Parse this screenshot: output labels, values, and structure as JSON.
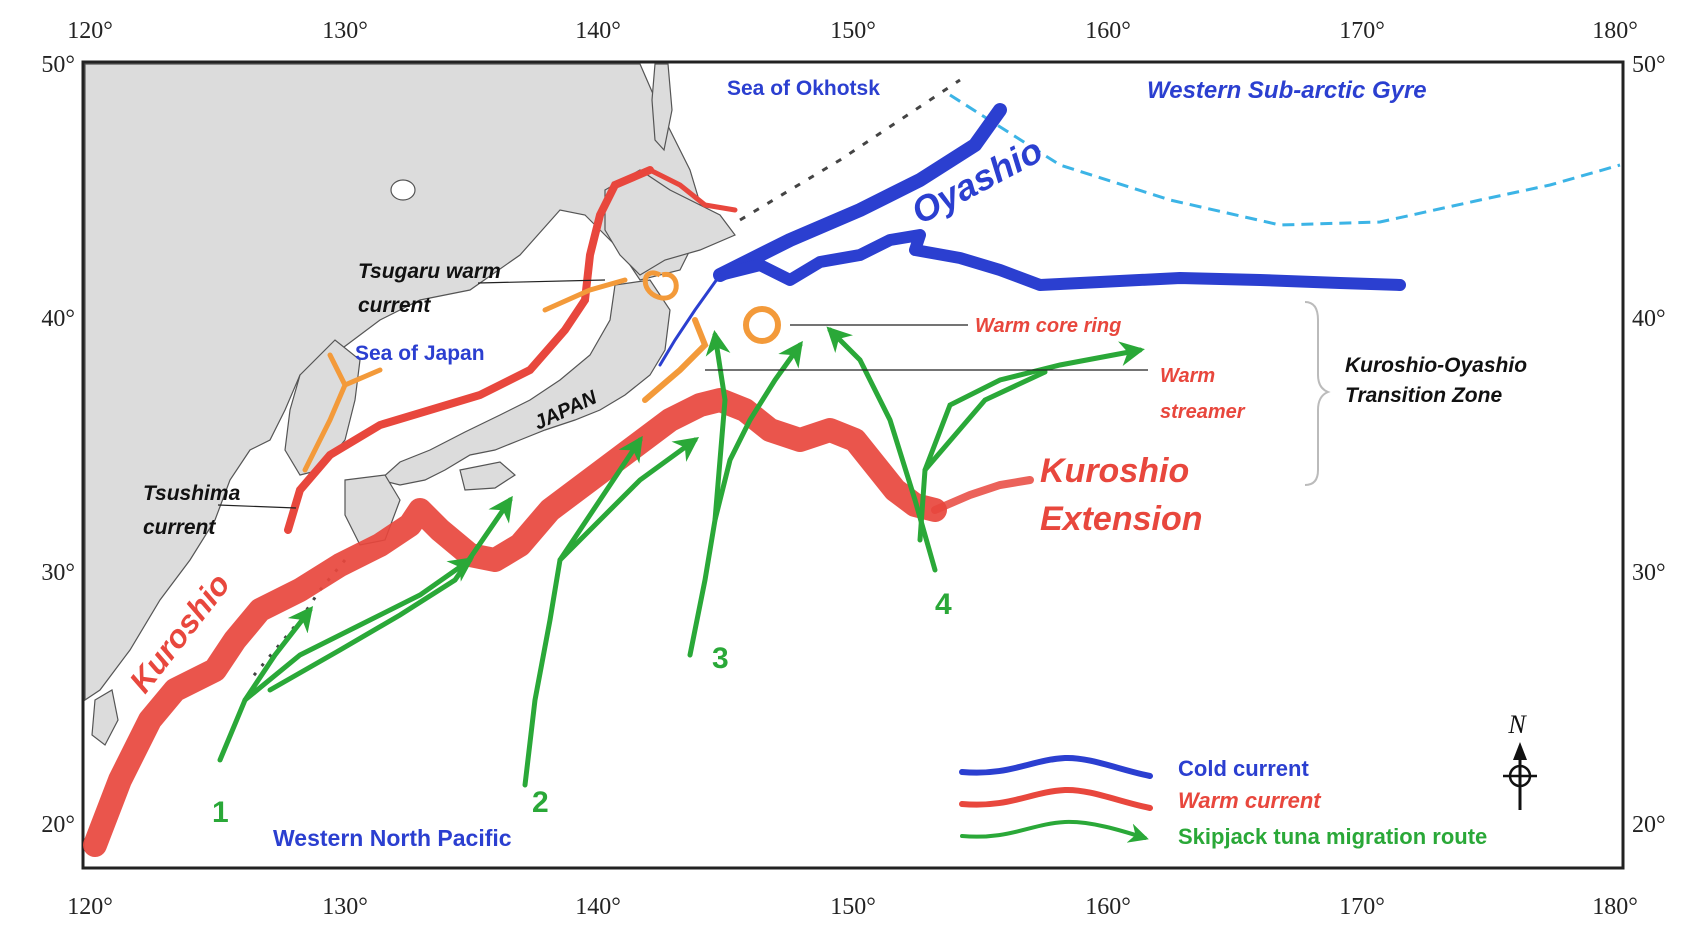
{
  "axes": {
    "lon_ticks": [
      "120°",
      "130°",
      "140°",
      "150°",
      "160°",
      "170°",
      "180°"
    ],
    "lat_ticks": [
      "50°",
      "40°",
      "30°",
      "20°"
    ]
  },
  "labels": {
    "sea_of_okhotsk": "Sea of Okhotsk",
    "western_subarctic_gyre": "Western Sub-arctic Gyre",
    "oyashio": "Oyashio",
    "tsugaru_line1": "Tsugaru warm",
    "tsugaru_line2": "current",
    "sea_of_japan": "Sea of Japan",
    "japan": "JAPAN",
    "warm_core_ring": "Warm core ring",
    "warm_streamer_line1": "Warm",
    "warm_streamer_line2": "streamer",
    "transition_line1": "Kuroshio-Oyashio",
    "transition_line2": "Transition Zone",
    "kuroshio_ext_line1": "Kuroshio",
    "kuroshio_ext_line2": "Extension",
    "tsushima_line1": "Tsushima",
    "tsushima_line2": "current",
    "kuroshio": "Kuroshio",
    "western_north_pacific": "Western North Pacific",
    "north_symbol": "N"
  },
  "routes": [
    "1",
    "2",
    "3",
    "4"
  ],
  "legend": {
    "cold": "Cold current",
    "warm": "Warm current",
    "skipjack": "Skipjack tuna migration route"
  },
  "colors": {
    "cold": "#2b3fd0",
    "warm": "#e8473d",
    "orange": "#f39a3a",
    "green": "#2aa838",
    "land": "#dcdcdc",
    "gyre": "#3cb4e6"
  }
}
